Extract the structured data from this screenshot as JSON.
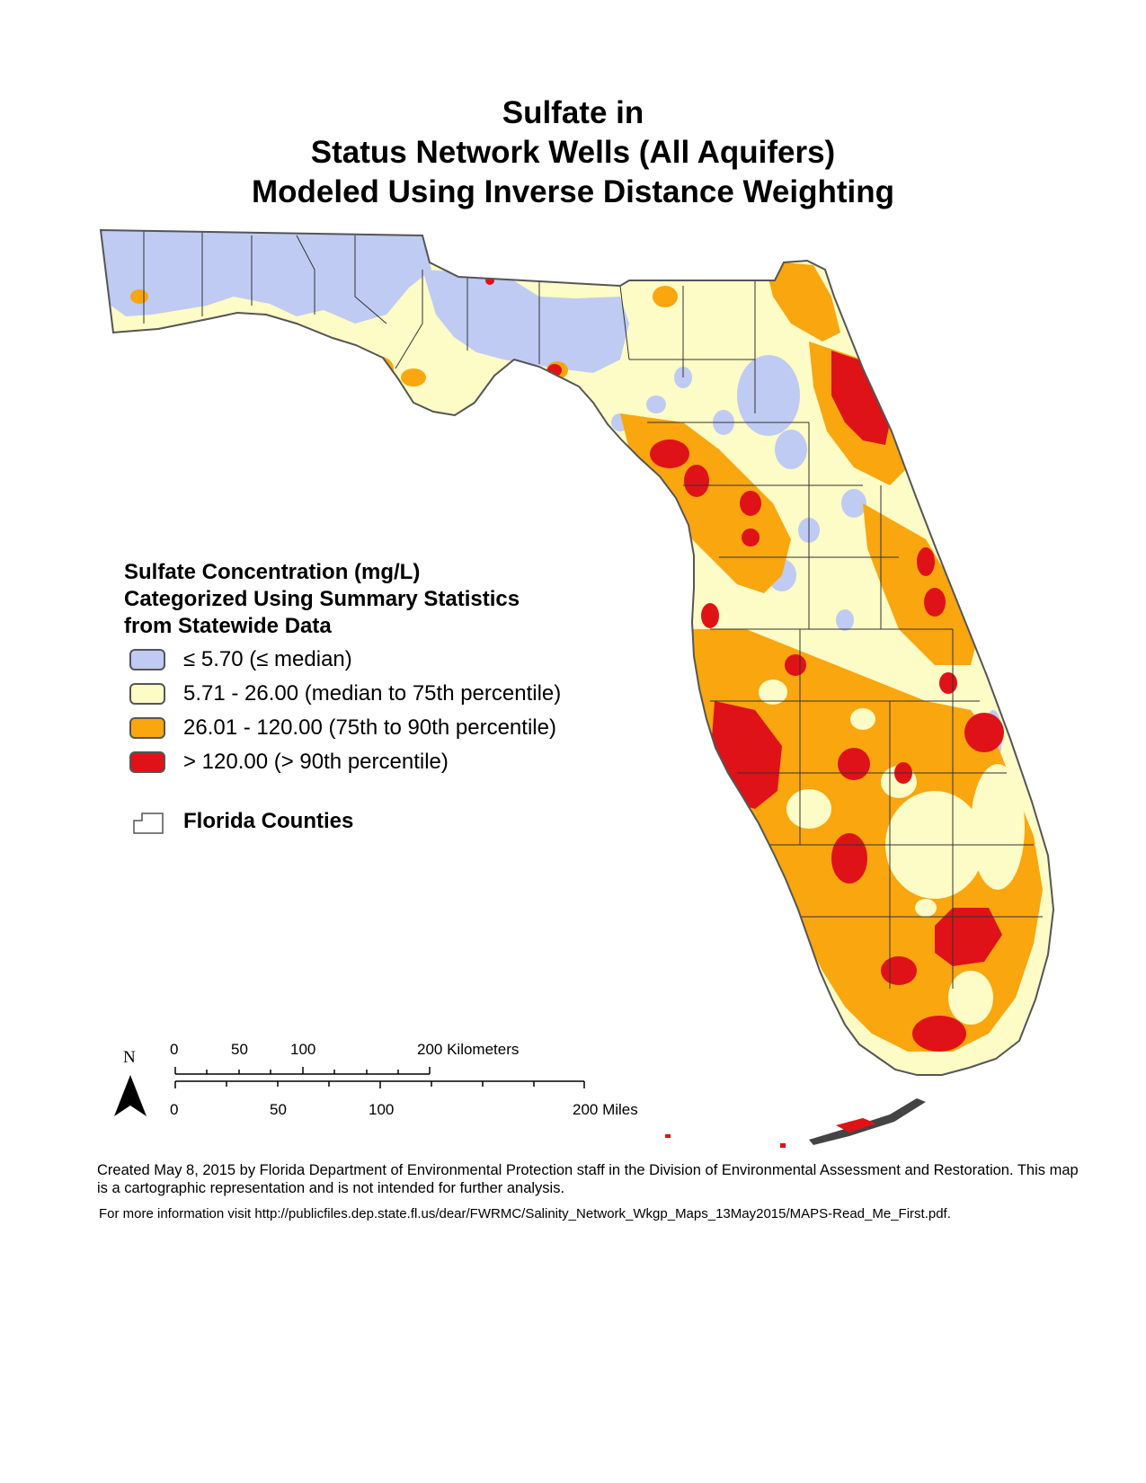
{
  "title": {
    "line1": "Sulfate in",
    "line2": "Status Network Wells (All Aquifers)",
    "line3": "Modeled Using Inverse Distance Weighting"
  },
  "legend": {
    "heading": [
      "Sulfate Concentration (mg/L)",
      "Categorized Using Summary Statistics",
      "from Statewide Data"
    ],
    "items": [
      {
        "label": "≤ 5.70 (≤ median)",
        "color": "#bfcbf3"
      },
      {
        "label": "5.71 - 26.00 (median to 75th percentile)",
        "color": "#fdfbc6"
      },
      {
        "label": "26.01 - 120.00 (75th to 90th percentile)",
        "color": "#f9a60f"
      },
      {
        "label": "> 120.00 (> 90th percentile)",
        "color": "#df1218"
      }
    ],
    "counties_label": "Florida Counties"
  },
  "scale_bar": {
    "km_labels": [
      "0",
      "50",
      "100",
      "200 Kilometers"
    ],
    "mile_labels": [
      "0",
      "50",
      "100",
      "200 Miles"
    ]
  },
  "north_arrow": {
    "label": "N",
    "icon": "north-arrow-icon"
  },
  "credits": {
    "created": "Created May 8, 2015 by Florida Department of Environmental Protection staff in the Division of Environmental Assessment and Restoration.  This map is a cartographic representation and is not intended for further analysis.",
    "more_info": "For more information visit http://publicfiles.dep.state.fl.us/dear/FWRMC/Salinity_Network_Wkgp_Maps_13May2015/MAPS-Read_Me_First.pdf."
  }
}
